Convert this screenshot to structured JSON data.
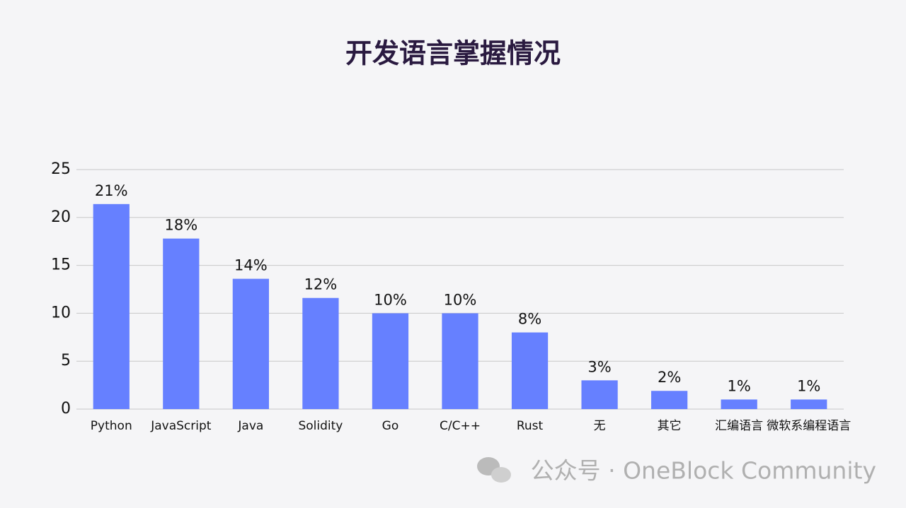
{
  "chart_data": {
    "type": "bar",
    "title": "开发语言掌握情况",
    "categories": [
      "Python",
      "JavaScript",
      "Java",
      "Solidity",
      "Go",
      "C/C++",
      "Rust",
      "无",
      "其它",
      "汇编语言",
      "微软系编程语言"
    ],
    "values": [
      21.4,
      17.8,
      13.6,
      11.6,
      10,
      10,
      8,
      3,
      1.9,
      1,
      1
    ],
    "value_labels": [
      "21%",
      "18%",
      "14%",
      "12%",
      "10%",
      "10%",
      "8%",
      "3%",
      "2%",
      "1%",
      "1%"
    ],
    "color": "#6680ff",
    "ylim": [
      0,
      25
    ],
    "yticks": [
      0,
      5,
      10,
      15,
      20,
      25
    ],
    "grid": true
  },
  "watermark": "公众号 · OneBlock Community"
}
